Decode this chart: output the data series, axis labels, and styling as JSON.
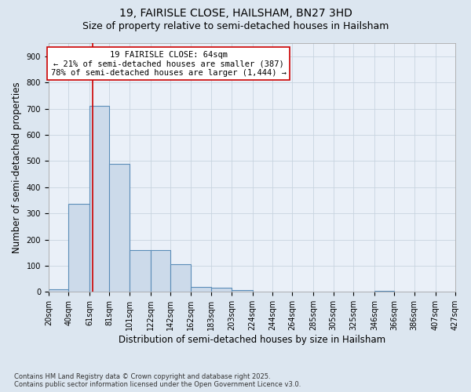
{
  "title_line1": "19, FAIRISLE CLOSE, HAILSHAM, BN27 3HD",
  "title_line2": "Size of property relative to semi-detached houses in Hailsham",
  "xlabel": "Distribution of semi-detached houses by size in Hailsham",
  "ylabel": "Number of semi-detached properties",
  "footnote": "Contains HM Land Registry data © Crown copyright and database right 2025.\nContains public sector information licensed under the Open Government Licence v3.0.",
  "bin_edges": [
    20,
    40,
    61,
    81,
    101,
    122,
    142,
    162,
    183,
    203,
    224,
    244,
    264,
    285,
    305,
    325,
    346,
    366,
    386,
    407,
    427
  ],
  "bar_heights": [
    10,
    335,
    710,
    490,
    160,
    160,
    105,
    20,
    15,
    8,
    0,
    0,
    0,
    0,
    0,
    0,
    5,
    0,
    0,
    0
  ],
  "bar_color": "#ccdaea",
  "bar_edge_color": "#5b8db8",
  "property_size": 64,
  "vline_color": "#cc0000",
  "annotation_text": "19 FAIRISLE CLOSE: 64sqm\n← 21% of semi-detached houses are smaller (387)\n78% of semi-detached houses are larger (1,444) →",
  "annotation_box_color": "#ffffff",
  "annotation_box_edge_color": "#cc0000",
  "ylim": [
    0,
    950
  ],
  "yticks": [
    0,
    100,
    200,
    300,
    400,
    500,
    600,
    700,
    800,
    900
  ],
  "background_color": "#dce6f0",
  "plot_background_color": "#eaf0f8",
  "grid_color": "#c8d4e0",
  "title_fontsize": 10,
  "subtitle_fontsize": 9,
  "tick_label_fontsize": 7,
  "axis_label_fontsize": 8.5,
  "annotation_fontsize": 7.5,
  "footnote_fontsize": 6.0
}
